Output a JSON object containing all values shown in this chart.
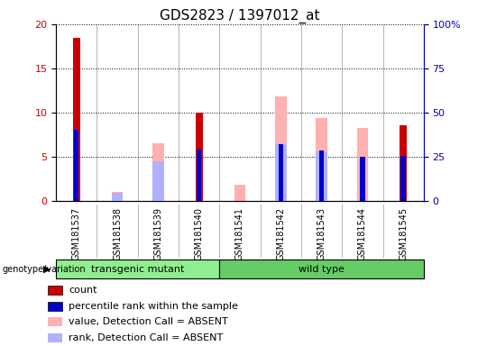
{
  "title": "GDS2823 / 1397012_at",
  "samples": [
    "GSM181537",
    "GSM181538",
    "GSM181539",
    "GSM181540",
    "GSM181541",
    "GSM181542",
    "GSM181543",
    "GSM181544",
    "GSM181545"
  ],
  "count_values": [
    18.5,
    0,
    0,
    10.0,
    0,
    0,
    0,
    0,
    8.5
  ],
  "percentile_rank": [
    40,
    0,
    0,
    29,
    0,
    32,
    28.5,
    25,
    25.5
  ],
  "absent_value": [
    0,
    5,
    32.5,
    0,
    9,
    59,
    47,
    41,
    0
  ],
  "absent_rank": [
    0,
    4.5,
    22.5,
    0,
    0,
    32,
    28,
    0,
    0
  ],
  "count_color": "#cc0000",
  "percentile_color": "#0000cc",
  "absent_value_color": "#ffb0b0",
  "absent_rank_color": "#b0b0ff",
  "ylim_left": [
    0,
    20
  ],
  "ylim_right": [
    0,
    100
  ],
  "yticks_left": [
    0,
    5,
    10,
    15,
    20
  ],
  "yticks_right": [
    0,
    25,
    50,
    75,
    100
  ],
  "ytick_labels_right": [
    "0",
    "25",
    "50",
    "75",
    "100%"
  ],
  "groups": [
    {
      "label": "transgenic mutant",
      "start": 0,
      "end": 4,
      "color": "#90ee90"
    },
    {
      "label": "wild type",
      "start": 4,
      "end": 9,
      "color": "#66cc66"
    }
  ],
  "genotype_label": "genotype/variation",
  "legend_items": [
    {
      "label": "count",
      "color": "#cc0000"
    },
    {
      "label": "percentile rank within the sample",
      "color": "#0000cc"
    },
    {
      "label": "value, Detection Call = ABSENT",
      "color": "#ffb0b0"
    },
    {
      "label": "rank, Detection Call = ABSENT",
      "color": "#b0b0ff"
    }
  ],
  "count_bar_width": 0.18,
  "rank_bar_width": 0.12,
  "absent_bar_width": 0.28,
  "xticklabel_fontsize": 7,
  "title_fontsize": 11,
  "ylabel_left_color": "#cc0000",
  "ylabel_right_color": "#0000cc"
}
